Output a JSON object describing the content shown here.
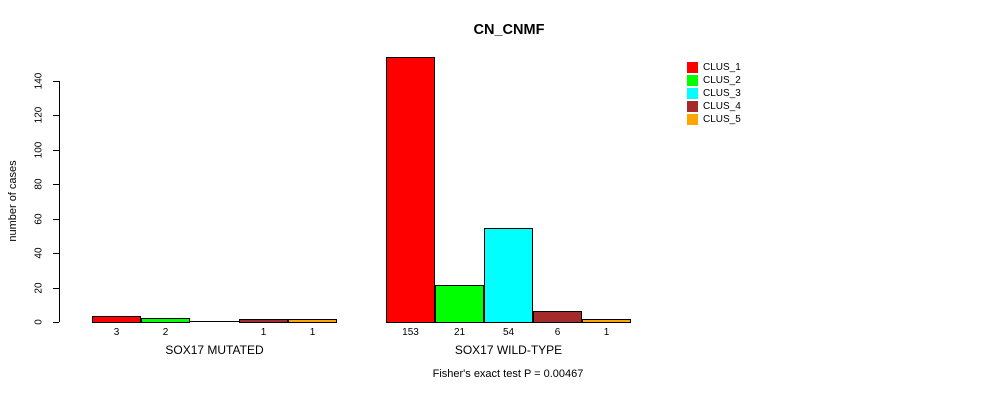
{
  "chart_data": {
    "type": "bar",
    "title": "CN_CNMF",
    "xlabel": "",
    "ylabel": "number of cases",
    "ylim": [
      0,
      140
    ],
    "yticks": [
      0,
      20,
      40,
      60,
      80,
      100,
      120,
      140
    ],
    "grid": false,
    "legend_position": "top-right-outside",
    "categories": [
      "SOX17 MUTATED",
      "SOX17 WILD-TYPE"
    ],
    "series": [
      {
        "name": "CLUS_1",
        "color": "#FF0000",
        "values": [
          3,
          153
        ]
      },
      {
        "name": "CLUS_2",
        "color": "#00FF00",
        "values": [
          2,
          21
        ]
      },
      {
        "name": "CLUS_3",
        "color": "#00FFFF",
        "values": [
          0,
          54
        ]
      },
      {
        "name": "CLUS_4",
        "color": "#A52A2A",
        "values": [
          1,
          6
        ]
      },
      {
        "name": "CLUS_5",
        "color": "#FFA500",
        "values": [
          1,
          1
        ]
      }
    ],
    "bar_value_labels": {
      "SOX17 MUTATED": [
        "3",
        "2",
        "",
        "1",
        "1"
      ],
      "SOX17 WILD-TYPE": [
        "153",
        "21",
        "54",
        "6",
        "1"
      ]
    },
    "annotation": "Fisher's exact test P = 0.00467"
  },
  "colors": {
    "axis": "#000000",
    "bar_border": "#000000",
    "background": "#FFFFFF"
  }
}
